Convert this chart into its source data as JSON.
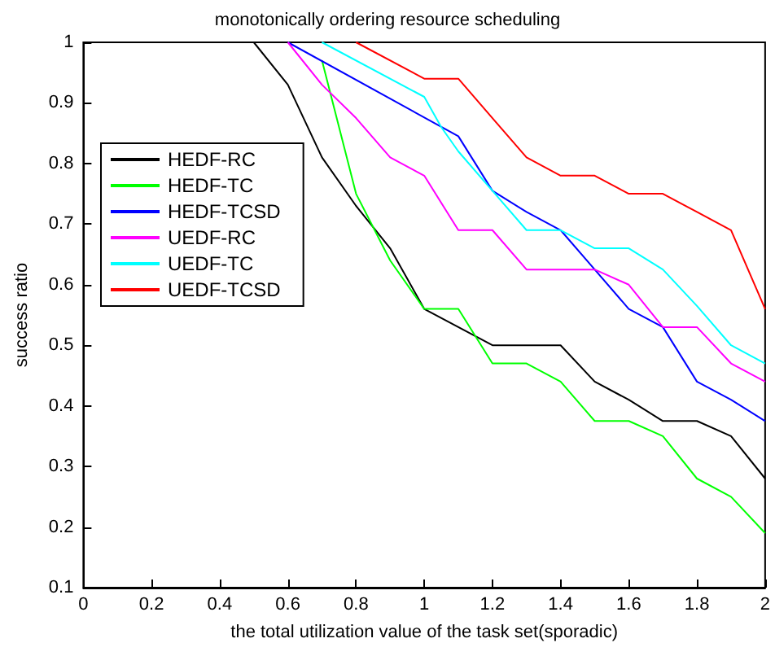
{
  "chart_data": {
    "type": "line",
    "title": "monotonically ordering resource scheduling",
    "xlabel": "the total utilization value of the task set(sporadic)",
    "ylabel": "success ratio",
    "xlim": [
      0,
      2
    ],
    "xticks": [
      0,
      0.2,
      0.4,
      0.6,
      0.8,
      1,
      1.2,
      1.4,
      1.6,
      1.8,
      2
    ],
    "ylim": [
      0.1,
      1
    ],
    "yticks": [
      0.1,
      0.2,
      0.3,
      0.4,
      0.5,
      0.6,
      0.7,
      0.8,
      0.9,
      1
    ],
    "grid": false,
    "legend": "left",
    "marker": "none",
    "line_style": "solid",
    "series": [
      {
        "name": "HEDF-RC",
        "color": "#000000",
        "x": [
          0.5,
          0.6,
          0.7,
          0.8,
          0.9,
          1.0,
          1.1,
          1.2,
          1.3,
          1.4,
          1.5,
          1.6,
          1.7,
          1.8,
          1.9,
          2.0
        ],
        "values": [
          1.0,
          0.93,
          0.81,
          0.73,
          0.66,
          0.56,
          0.53,
          0.5,
          0.5,
          0.5,
          0.44,
          0.41,
          0.375,
          0.375,
          0.35,
          0.28
        ]
      },
      {
        "name": "HEDF-TC",
        "color": "#00ff00",
        "x": [
          0.7,
          0.8,
          0.9,
          1.0,
          1.1,
          1.2,
          1.3,
          1.4,
          1.5,
          1.6,
          1.7,
          1.8,
          1.9,
          2.0
        ],
        "values": [
          0.97,
          0.75,
          0.64,
          0.56,
          0.56,
          0.47,
          0.47,
          0.44,
          0.375,
          0.375,
          0.35,
          0.28,
          0.25,
          0.19
        ]
      },
      {
        "name": "HEDF-TCSD",
        "color": "#0000ff",
        "x": [
          0.6,
          1.1,
          1.2,
          1.3,
          1.4,
          1.5,
          1.6,
          1.7,
          1.8,
          1.9,
          2.0
        ],
        "values": [
          1.0,
          0.845,
          0.755,
          0.72,
          0.69,
          0.625,
          0.56,
          0.53,
          0.44,
          0.41,
          0.375
        ]
      },
      {
        "name": "UEDF-RC",
        "color": "#ff00ff",
        "x": [
          0.6,
          0.7,
          0.8,
          0.9,
          1.0,
          1.1,
          1.2,
          1.3,
          1.4,
          1.5,
          1.6,
          1.7,
          1.8,
          1.9,
          2.0
        ],
        "values": [
          1.0,
          0.93,
          0.875,
          0.81,
          0.78,
          0.69,
          0.69,
          0.625,
          0.625,
          0.625,
          0.6,
          0.53,
          0.53,
          0.47,
          0.44
        ]
      },
      {
        "name": "UEDF-TC",
        "color": "#00ffff",
        "x": [
          0.7,
          1.0,
          1.05,
          1.1,
          1.2,
          1.3,
          1.4,
          1.5,
          1.6,
          1.7,
          1.8,
          1.9,
          2.0
        ],
        "values": [
          1.0,
          0.91,
          0.86,
          0.82,
          0.755,
          0.69,
          0.69,
          0.66,
          0.66,
          0.625,
          0.565,
          0.5,
          0.47
        ]
      },
      {
        "name": "UEDF-TCSD",
        "color": "#ff0000",
        "x": [
          0.8,
          1.0,
          1.1,
          1.2,
          1.3,
          1.4,
          1.5,
          1.6,
          1.7,
          1.8,
          1.9,
          2.0
        ],
        "values": [
          1.0,
          0.94,
          0.94,
          0.875,
          0.81,
          0.78,
          0.78,
          0.75,
          0.75,
          0.72,
          0.69,
          0.56
        ]
      }
    ]
  }
}
